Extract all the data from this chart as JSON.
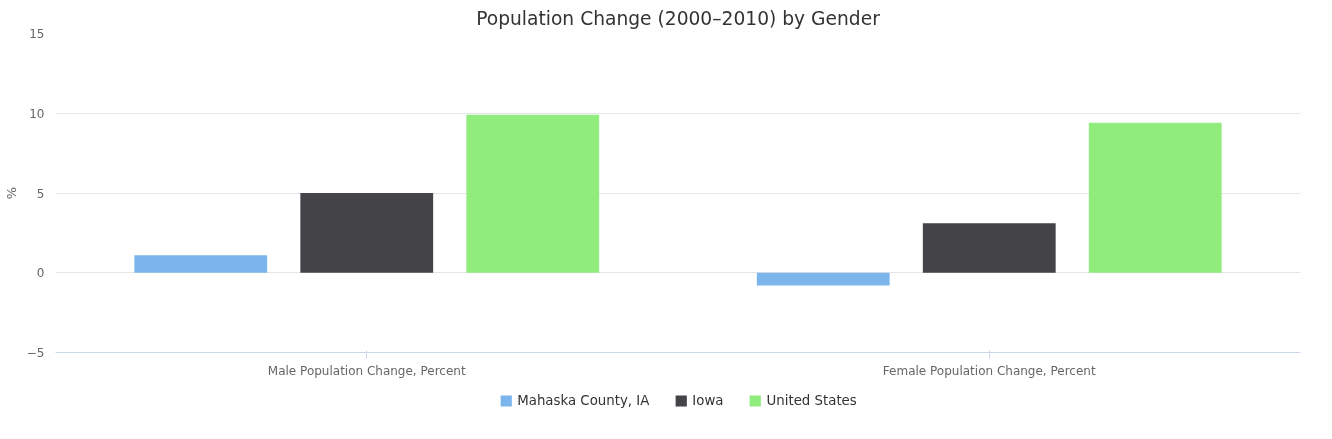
{
  "chart_data": {
    "type": "bar",
    "title": "Population Change (2000–2010) by Gender",
    "ylabel": "%",
    "categories": [
      "Male Population Change, Percent",
      "Female Population Change, Percent"
    ],
    "series": [
      {
        "name": "Mahaska County, IA",
        "color": "#7cb5ec",
        "values": [
          1.1,
          -0.8
        ]
      },
      {
        "name": "Iowa",
        "color": "#434348",
        "values": [
          5.0,
          3.1
        ]
      },
      {
        "name": "United States",
        "color": "#90ed7d",
        "values": [
          9.9,
          9.4
        ]
      }
    ],
    "ylim": [
      -5,
      15
    ],
    "yticks": [
      -5,
      0,
      5,
      10,
      15
    ],
    "grid": "y",
    "legend": "bottom"
  }
}
